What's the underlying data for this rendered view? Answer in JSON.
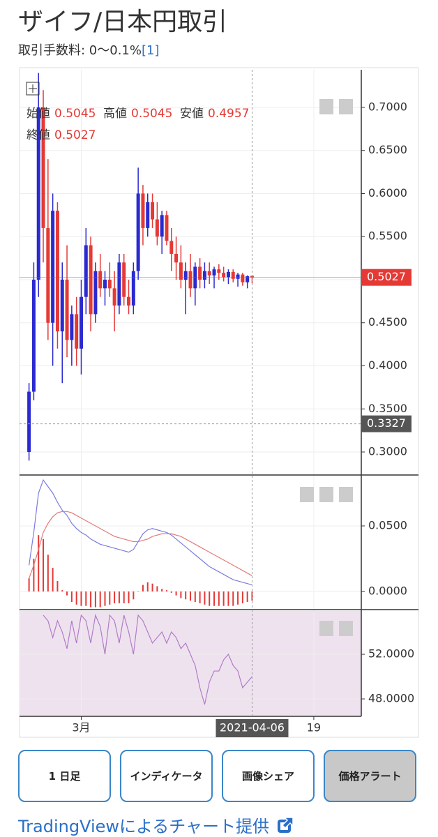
{
  "header": {
    "title": "ザイフ/日本円取引",
    "fee": "取引手数料: 0〜0.1%",
    "footnote": "[1]"
  },
  "chart_data": {
    "type": "candlestick",
    "x": [
      "2021-02-18",
      "2021-02-19",
      "2021-02-20",
      "2021-02-21",
      "2021-02-22",
      "2021-02-23",
      "2021-02-24",
      "2021-02-25",
      "2021-02-26",
      "2021-02-27",
      "2021-02-28",
      "2021-03-01",
      "2021-03-02",
      "2021-03-03",
      "2021-03-04",
      "2021-03-05",
      "2021-03-06",
      "2021-03-07",
      "2021-03-08",
      "2021-03-09",
      "2021-03-10",
      "2021-03-11",
      "2021-03-12",
      "2021-03-13",
      "2021-03-14",
      "2021-03-15",
      "2021-03-16",
      "2021-03-17",
      "2021-03-18",
      "2021-03-19",
      "2021-03-20",
      "2021-03-21",
      "2021-03-22",
      "2021-03-23",
      "2021-03-24",
      "2021-03-25",
      "2021-03-26",
      "2021-03-27",
      "2021-03-28",
      "2021-03-29",
      "2021-03-30",
      "2021-03-31",
      "2021-04-01",
      "2021-04-02",
      "2021-04-03",
      "2021-04-04",
      "2021-04-05",
      "2021-04-06"
    ],
    "candles": {
      "open": [
        0.3,
        0.37,
        0.5,
        0.7,
        0.56,
        0.45,
        0.58,
        0.44,
        0.5,
        0.43,
        0.46,
        0.42,
        0.48,
        0.54,
        0.46,
        0.51,
        0.49,
        0.5,
        0.49,
        0.47,
        0.52,
        0.48,
        0.47,
        0.51,
        0.6,
        0.56,
        0.59,
        0.57,
        0.55,
        0.575,
        0.545,
        0.53,
        0.52,
        0.5,
        0.51,
        0.49,
        0.515,
        0.5,
        0.51,
        0.505,
        0.512,
        0.508,
        0.503,
        0.509,
        0.501,
        0.506,
        0.497,
        0.5045
      ],
      "high": [
        0.38,
        0.52,
        0.74,
        0.72,
        0.64,
        0.6,
        0.59,
        0.52,
        0.54,
        0.47,
        0.48,
        0.5,
        0.56,
        0.55,
        0.52,
        0.53,
        0.51,
        0.52,
        0.51,
        0.53,
        0.53,
        0.5,
        0.52,
        0.63,
        0.61,
        0.6,
        0.6,
        0.59,
        0.58,
        0.58,
        0.56,
        0.55,
        0.54,
        0.52,
        0.53,
        0.52,
        0.525,
        0.52,
        0.52,
        0.515,
        0.518,
        0.515,
        0.512,
        0.512,
        0.508,
        0.508,
        0.505,
        0.5045
      ],
      "low": [
        0.29,
        0.36,
        0.48,
        0.52,
        0.43,
        0.4,
        0.42,
        0.38,
        0.41,
        0.4,
        0.4,
        0.39,
        0.46,
        0.44,
        0.45,
        0.48,
        0.47,
        0.48,
        0.44,
        0.46,
        0.47,
        0.46,
        0.46,
        0.5,
        0.54,
        0.55,
        0.56,
        0.54,
        0.53,
        0.54,
        0.51,
        0.5,
        0.49,
        0.46,
        0.48,
        0.47,
        0.49,
        0.49,
        0.495,
        0.49,
        0.5,
        0.498,
        0.495,
        0.497,
        0.492,
        0.493,
        0.49,
        0.4957
      ],
      "close": [
        0.37,
        0.5,
        0.7,
        0.56,
        0.45,
        0.58,
        0.44,
        0.5,
        0.43,
        0.46,
        0.42,
        0.48,
        0.54,
        0.46,
        0.51,
        0.49,
        0.5,
        0.49,
        0.47,
        0.52,
        0.48,
        0.47,
        0.51,
        0.6,
        0.56,
        0.59,
        0.57,
        0.55,
        0.575,
        0.545,
        0.53,
        0.52,
        0.5,
        0.51,
        0.49,
        0.515,
        0.5,
        0.51,
        0.505,
        0.512,
        0.508,
        0.503,
        0.509,
        0.501,
        0.506,
        0.497,
        0.504,
        0.5027
      ],
      "up_color": "#2a2ad0",
      "down_color": "#e53935"
    },
    "ohlc_labels": [
      "始値",
      "高値",
      "安値",
      "終値"
    ],
    "xlim": [
      "2021-02-16",
      "2021-04-29"
    ],
    "xticks": [
      {
        "value": "2021-03-01",
        "label": "3月"
      },
      {
        "value": "2021-04-19",
        "label": "19"
      }
    ],
    "ylim": [
      0.2741,
      0.7437
    ],
    "yticks": [
      {
        "value": 0.3,
        "label": "0.3000"
      },
      {
        "value": 0.35,
        "label": "0.3500"
      },
      {
        "value": 0.4,
        "label": "0.4000"
      },
      {
        "value": 0.45,
        "label": "0.4500"
      },
      {
        "value": 0.5,
        "label": "0.5000"
      },
      {
        "value": 0.55,
        "label": "0.5500"
      },
      {
        "value": 0.6,
        "label": "0.6000"
      },
      {
        "value": 0.65,
        "label": "0.6500"
      },
      {
        "value": 0.7,
        "label": "0.7000"
      }
    ],
    "crosshair": {
      "x": "2021-04-06",
      "y": 0.3327
    },
    "grid": true,
    "macd": {
      "macd": [
        0.02,
        0.045,
        0.075,
        0.085,
        0.08,
        0.075,
        0.068,
        0.062,
        0.058,
        0.052,
        0.048,
        0.045,
        0.043,
        0.04,
        0.038,
        0.036,
        0.035,
        0.034,
        0.033,
        0.032,
        0.031,
        0.03,
        0.032,
        0.038,
        0.044,
        0.047,
        0.048,
        0.047,
        0.046,
        0.045,
        0.043,
        0.04,
        0.037,
        0.034,
        0.031,
        0.028,
        0.025,
        0.022,
        0.019,
        0.017,
        0.015,
        0.013,
        0.011,
        0.009,
        0.008,
        0.007,
        0.006,
        0.005
      ],
      "signal": [
        0.01,
        0.02,
        0.032,
        0.045,
        0.052,
        0.057,
        0.06,
        0.061,
        0.061,
        0.06,
        0.058,
        0.056,
        0.054,
        0.052,
        0.05,
        0.048,
        0.046,
        0.044,
        0.042,
        0.041,
        0.04,
        0.039,
        0.038,
        0.038,
        0.039,
        0.04,
        0.042,
        0.043,
        0.044,
        0.044,
        0.044,
        0.043,
        0.042,
        0.04,
        0.038,
        0.036,
        0.034,
        0.032,
        0.03,
        0.028,
        0.026,
        0.024,
        0.022,
        0.02,
        0.018,
        0.016,
        0.014,
        0.012
      ],
      "histogram": [
        0.01,
        0.025,
        0.043,
        0.04,
        0.028,
        0.018,
        0.008,
        0.001,
        -0.003,
        -0.008,
        -0.01,
        -0.011,
        -0.011,
        -0.012,
        -0.012,
        -0.012,
        -0.011,
        -0.01,
        -0.009,
        -0.009,
        -0.009,
        -0.009,
        -0.006,
        0.0,
        0.005,
        0.007,
        0.006,
        0.004,
        0.002,
        0.001,
        -0.001,
        -0.003,
        -0.005,
        -0.006,
        -0.007,
        -0.008,
        -0.009,
        -0.01,
        -0.011,
        -0.011,
        -0.011,
        -0.011,
        -0.011,
        -0.011,
        -0.01,
        -0.009,
        -0.008,
        -0.007
      ],
      "macd_color": "#7b7be0",
      "signal_color": "#e07b7b",
      "histogram_color": "#e53935",
      "ylim": [
        -0.0133,
        0.0883
      ],
      "yticks": [
        {
          "value": 0,
          "label": "0.0000"
        },
        {
          "value": 0.05,
          "label": "0.0500"
        }
      ]
    },
    "rsi": {
      "values": [
        null,
        null,
        null,
        55.5,
        55.0,
        53.5,
        55.0,
        54.0,
        52.5,
        55.0,
        53.0,
        55.5,
        55.0,
        53.0,
        55.5,
        54.5,
        52.0,
        55.5,
        55.0,
        53.0,
        55.5,
        54.0,
        52.0,
        55.5,
        55.0,
        54.0,
        53.0,
        53.5,
        54.0,
        53.0,
        54.0,
        53.5,
        52.5,
        53.0,
        52.0,
        51.0,
        49.0,
        47.5,
        49.5,
        50.5,
        50.5,
        51.5,
        52.0,
        51.0,
        50.5,
        49.0,
        49.5,
        50.0
      ],
      "color": "#b07cc6",
      "ylim": [
        46.44,
        55.94
      ],
      "yticks": [
        {
          "value": 48,
          "label": "48.0000"
        },
        {
          "value": 52,
          "label": "52.0000"
        }
      ]
    }
  },
  "buttons": [
    "1 日足",
    "インディケータ",
    "画像シェア",
    "価格アラート"
  ],
  "footer": "TradingViewによるチャート提供"
}
